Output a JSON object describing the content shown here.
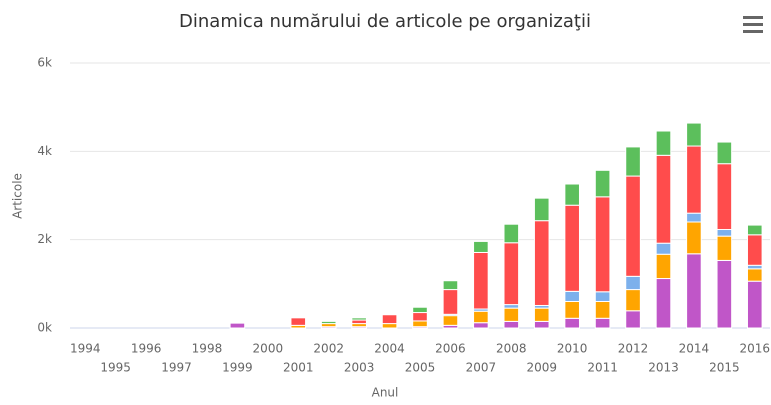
{
  "chart_data": {
    "type": "stacked_bar",
    "title": "Dinamica numărului de articole pe organizaţii",
    "xlabel": "Anul",
    "ylabel": "Articole",
    "categories": [
      "1994",
      "1995",
      "1996",
      "1997",
      "1998",
      "1999",
      "2000",
      "2001",
      "2002",
      "2003",
      "2004",
      "2005",
      "2006",
      "2007",
      "2008",
      "2009",
      "2010",
      "2011",
      "2012",
      "2013",
      "2014",
      "2015",
      "2016"
    ],
    "series": [
      {
        "color": "#c056c8",
        "values": [
          0,
          0,
          0,
          0,
          0,
          110,
          0,
          0,
          30,
          30,
          0,
          30,
          60,
          120,
          150,
          150,
          220,
          220,
          390,
          1120,
          1680,
          1530,
          1060
        ]
      },
      {
        "color": "#ffa500",
        "values": [
          0,
          0,
          0,
          0,
          0,
          0,
          0,
          60,
          70,
          70,
          100,
          130,
          220,
          260,
          300,
          300,
          380,
          380,
          480,
          550,
          720,
          550,
          280
        ]
      },
      {
        "color": "#7cb0ec",
        "values": [
          0,
          0,
          0,
          0,
          0,
          0,
          0,
          0,
          0,
          0,
          0,
          0,
          30,
          50,
          80,
          60,
          230,
          220,
          300,
          250,
          200,
          150,
          80
        ]
      },
      {
        "color": "#ff4c4c",
        "values": [
          0,
          0,
          0,
          0,
          0,
          0,
          0,
          170,
          0,
          80,
          200,
          190,
          560,
          1280,
          1400,
          1920,
          1950,
          2150,
          2270,
          1990,
          1520,
          1490,
          690
        ]
      },
      {
        "color": "#5cbf5c",
        "values": [
          0,
          0,
          0,
          0,
          0,
          0,
          0,
          0,
          50,
          50,
          0,
          120,
          200,
          250,
          420,
          510,
          480,
          600,
          660,
          550,
          520,
          490,
          220
        ]
      }
    ],
    "ylim": [
      0,
      6000
    ],
    "yticks": [
      {
        "value": 0,
        "label": "0k"
      },
      {
        "value": 2000,
        "label": "2k"
      },
      {
        "value": 4000,
        "label": "4k"
      },
      {
        "value": 6000,
        "label": "6k"
      }
    ],
    "grid": true
  }
}
